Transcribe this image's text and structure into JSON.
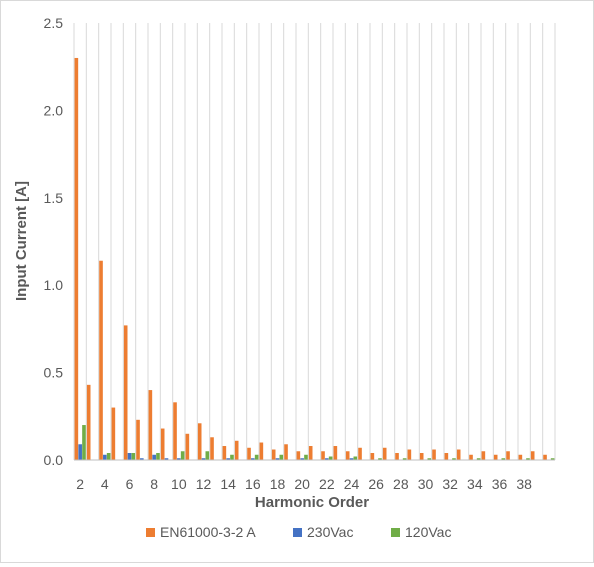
{
  "chart_data": {
    "type": "bar",
    "title": "",
    "xlabel": "Harmonic Order",
    "ylabel": "Input Current [A]",
    "ylim": [
      0,
      2.5
    ],
    "yticks": [
      "0.0",
      "0.5",
      "1.0",
      "1.5",
      "2.0",
      "2.5"
    ],
    "grid": "vertical",
    "legend": "bottom",
    "categories": [
      2,
      3,
      4,
      5,
      6,
      7,
      8,
      9,
      10,
      11,
      12,
      13,
      14,
      15,
      16,
      17,
      18,
      19,
      20,
      21,
      22,
      23,
      24,
      25,
      26,
      27,
      28,
      29,
      30,
      31,
      32,
      33,
      34,
      35,
      36,
      37,
      38,
      39,
      40
    ],
    "xtick_labels": [
      "2",
      "4",
      "6",
      "8",
      "10",
      "12",
      "14",
      "16",
      "18",
      "20",
      "22",
      "24",
      "26",
      "28",
      "30",
      "32",
      "34",
      "36",
      "38"
    ],
    "series": [
      {
        "name": "EN61000-3-2 A",
        "color": "#ed7d31",
        "values": [
          2.3,
          0.43,
          1.14,
          0.3,
          0.77,
          0.23,
          0.4,
          0.18,
          0.33,
          0.15,
          0.21,
          0.13,
          0.08,
          0.11,
          0.07,
          0.1,
          0.06,
          0.09,
          0.05,
          0.08,
          0.05,
          0.08,
          0.05,
          0.07,
          0.04,
          0.07,
          0.04,
          0.06,
          0.04,
          0.06,
          0.04,
          0.06,
          0.03,
          0.05,
          0.03,
          0.05,
          0.03,
          0.05,
          0.03
        ]
      },
      {
        "name": "230Vac",
        "color": "#4472c4",
        "values": [
          0.09,
          0.0,
          0.03,
          0.0,
          0.04,
          0.01,
          0.03,
          0.01,
          0.01,
          0.0,
          0.01,
          0.0,
          0.01,
          0.0,
          0.01,
          0.0,
          0.01,
          0.0,
          0.01,
          0.0,
          0.01,
          0.0,
          0.01,
          0.0,
          0.0,
          0.0,
          0.0,
          0.0,
          0.0,
          0.0,
          0.0,
          0.0,
          0.0,
          0.0,
          0.0,
          0.0,
          0.0,
          0.0,
          0.0
        ]
      },
      {
        "name": "120Vac",
        "color": "#70ad47",
        "values": [
          0.2,
          0.0,
          0.04,
          0.0,
          0.04,
          0.0,
          0.04,
          0.0,
          0.05,
          0.0,
          0.05,
          0.0,
          0.03,
          0.0,
          0.03,
          0.0,
          0.03,
          0.0,
          0.03,
          0.0,
          0.02,
          0.0,
          0.02,
          0.0,
          0.01,
          0.0,
          0.01,
          0.0,
          0.01,
          0.0,
          0.01,
          0.0,
          0.01,
          0.0,
          0.01,
          0.0,
          0.01,
          0.0,
          0.01
        ]
      }
    ]
  }
}
